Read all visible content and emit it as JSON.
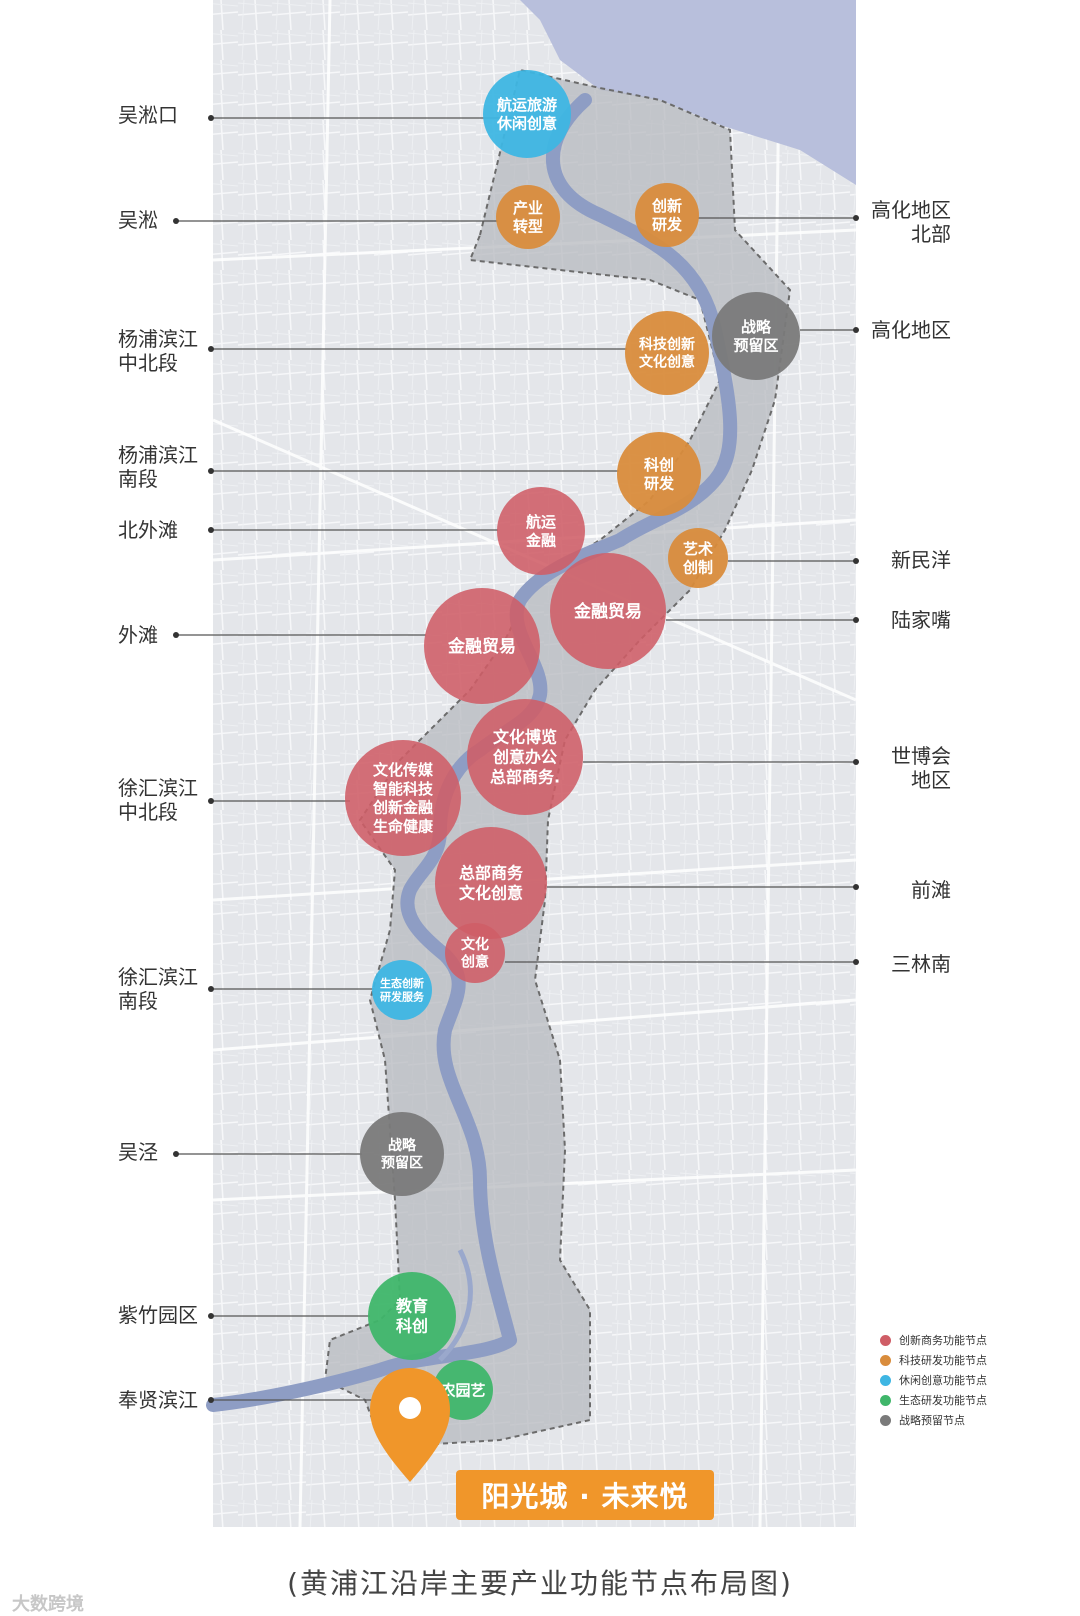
{
  "places_left": [
    {
      "lines": [
        "吴淞口"
      ]
    },
    {
      "lines": [
        "吴淞"
      ]
    },
    {
      "lines": [
        "杨浦滨江",
        "中北段"
      ]
    },
    {
      "lines": [
        "杨浦滨江",
        "南段"
      ]
    },
    {
      "lines": [
        "北外滩"
      ]
    },
    {
      "lines": [
        "外滩"
      ]
    },
    {
      "lines": [
        "徐汇滨江",
        "中北段"
      ]
    },
    {
      "lines": [
        "徐汇滨江",
        "南段"
      ]
    },
    {
      "lines": [
        "吴泾"
      ]
    },
    {
      "lines": [
        "紫竹园区"
      ]
    },
    {
      "lines": [
        "奉贤滨江"
      ]
    }
  ],
  "places_right": [
    {
      "lines": [
        "高化地区",
        "北部"
      ]
    },
    {
      "lines": [
        "高化地区"
      ]
    },
    {
      "lines": [
        "新民洋"
      ]
    },
    {
      "lines": [
        "陆家嘴"
      ]
    },
    {
      "lines": [
        "世博会",
        "地区"
      ]
    },
    {
      "lines": [
        "前滩"
      ]
    },
    {
      "lines": [
        "三林南"
      ]
    }
  ],
  "nodes": [
    {
      "type": "leisure",
      "lines": [
        "航运旅游",
        "休闲创意"
      ]
    },
    {
      "type": "tech",
      "lines": [
        "产业",
        "转型"
      ]
    },
    {
      "type": "tech",
      "lines": [
        "创新",
        "研发"
      ]
    },
    {
      "type": "reserve",
      "lines": [
        "战略",
        "预留区"
      ]
    },
    {
      "type": "tech",
      "lines": [
        "科技创新",
        "文化创意"
      ]
    },
    {
      "type": "tech",
      "lines": [
        "科创",
        "研发"
      ]
    },
    {
      "type": "business",
      "lines": [
        "航运",
        "金融"
      ]
    },
    {
      "type": "tech",
      "lines": [
        "艺术",
        "创制"
      ]
    },
    {
      "type": "business",
      "lines": [
        "金融贸易"
      ]
    },
    {
      "type": "business",
      "lines": [
        "金融贸易"
      ]
    },
    {
      "type": "business",
      "lines": [
        "文化博览",
        "创意办公",
        "总部商务."
      ]
    },
    {
      "type": "business",
      "lines": [
        "文化传媒",
        "智能科技",
        "创新金融",
        "生命健康"
      ]
    },
    {
      "type": "business",
      "lines": [
        "总部商务",
        "文化创意"
      ]
    },
    {
      "type": "business",
      "lines": [
        "文化",
        "创意"
      ]
    },
    {
      "type": "leisure",
      "lines": [
        "生态创新",
        "研发服务"
      ]
    },
    {
      "type": "reserve",
      "lines": [
        "战略",
        "预留区"
      ]
    },
    {
      "type": "eco",
      "lines": [
        "教育",
        "科创"
      ]
    },
    {
      "type": "eco",
      "lines": [
        "农园艺"
      ]
    }
  ],
  "legend": [
    {
      "type": "business",
      "label": "创新商务功能节点"
    },
    {
      "type": "tech",
      "label": "科技研发功能节点"
    },
    {
      "type": "leisure",
      "label": "休闲创意功能节点"
    },
    {
      "type": "eco",
      "label": "生态研发功能节点"
    },
    {
      "type": "reserve",
      "label": "战略预留节点"
    }
  ],
  "colors": {
    "business": "#cf5d66",
    "tech": "#d98c3c",
    "leisure": "#3eb6e3",
    "eco": "#3fb66a",
    "reserve": "#7a7a7a",
    "river": "#8e9dc4",
    "sea": "#b8bfdc",
    "brand": "#f0962a"
  },
  "brand_label": "阳光城 · 未来悦",
  "pin_icon": "location-pin-icon",
  "caption": "(黄浦江沿岸主要产业功能节点布局图)",
  "watermark": "大数跨境"
}
